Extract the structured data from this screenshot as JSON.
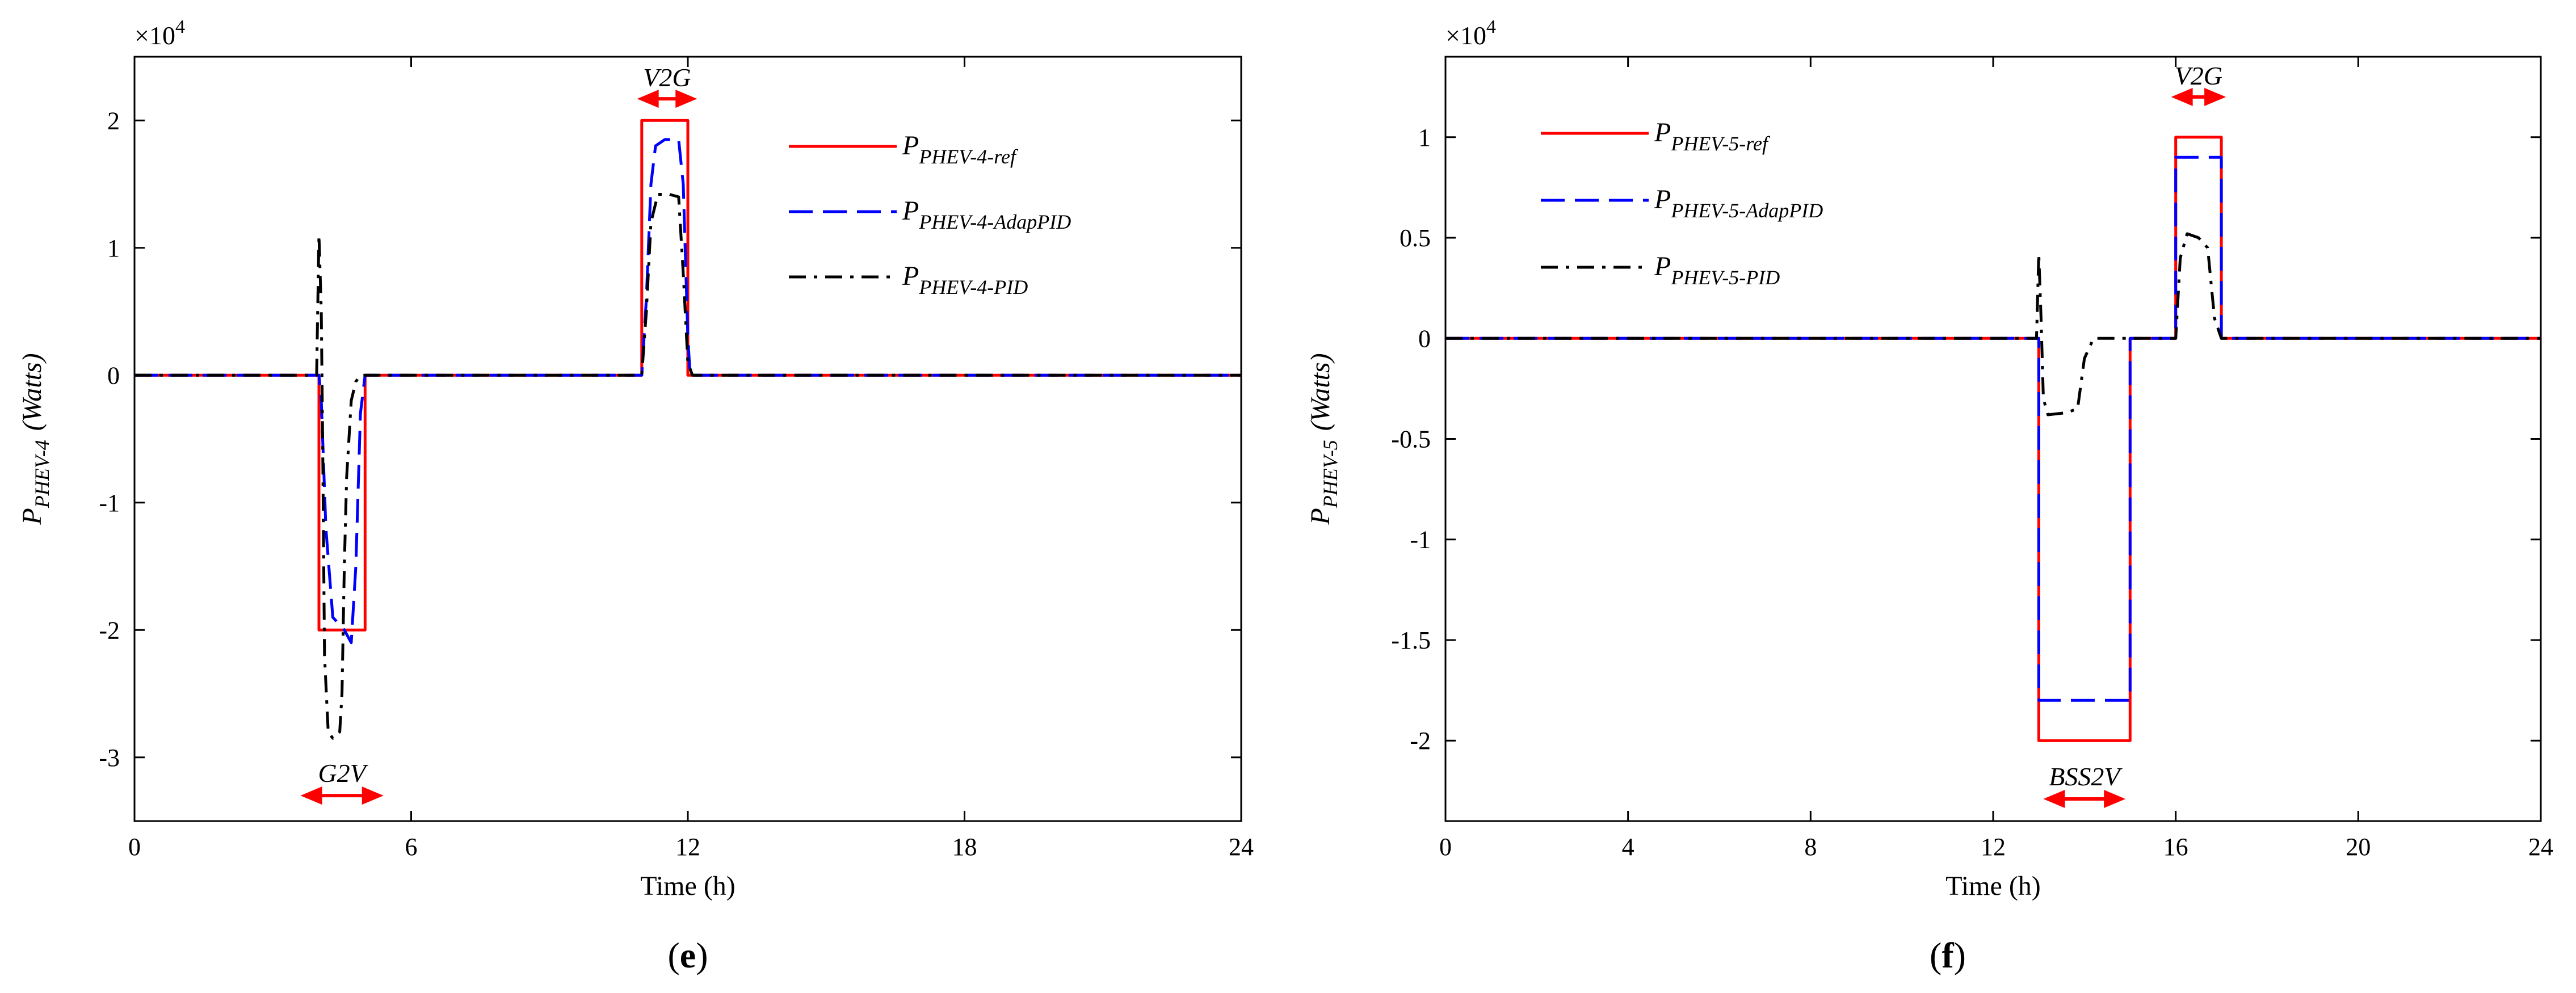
{
  "colors": {
    "ref": "#ff0000",
    "adap": "#0000ff",
    "pid": "#000000",
    "arrow": "#ff0000"
  },
  "chart_data": [
    {
      "id": "e",
      "type": "line",
      "panel_label": {
        "open": "(",
        "letter": "e",
        "close": ")"
      },
      "xlabel": "Time (h)",
      "ylabel": {
        "main": "P",
        "sub": "PHEV-4",
        "unit": "(Watts)"
      },
      "y_multiplier": "×10",
      "y_multiplier_exp": "4",
      "xlim": [
        0,
        24
      ],
      "ylim": [
        -3.5,
        2.5
      ],
      "xticks": [
        0,
        6,
        12,
        18,
        24
      ],
      "yticks": [
        -3,
        -2,
        -1,
        0,
        1,
        2
      ],
      "xtick_labels": [
        "0",
        "6",
        "12",
        "18",
        "24"
      ],
      "ytick_labels": [
        "-3",
        "-2",
        "-1",
        "0",
        "1",
        "2"
      ],
      "legend_position": "top-right",
      "series": [
        {
          "key": "ref",
          "legend": {
            "main": "P",
            "sub": "PHEV-4-ref"
          },
          "style": "solid",
          "points": [
            [
              0,
              0
            ],
            [
              4,
              0
            ],
            [
              4,
              -2
            ],
            [
              5,
              -2
            ],
            [
              5,
              0
            ],
            [
              11,
              0
            ],
            [
              11,
              2
            ],
            [
              12,
              2
            ],
            [
              12,
              0
            ],
            [
              24,
              0
            ]
          ]
        },
        {
          "key": "adap",
          "legend": {
            "main": "P",
            "sub": "PHEV-4-AdapPID"
          },
          "style": "dashed",
          "points": [
            [
              0,
              0
            ],
            [
              4.0,
              0
            ],
            [
              4.05,
              -0.2
            ],
            [
              4.15,
              -1.2
            ],
            [
              4.3,
              -1.9
            ],
            [
              4.55,
              -2.0
            ],
            [
              4.7,
              -2.1
            ],
            [
              4.8,
              -1.5
            ],
            [
              4.9,
              -0.3
            ],
            [
              5.0,
              0
            ],
            [
              11.0,
              0
            ],
            [
              11.1,
              0.6
            ],
            [
              11.2,
              1.5
            ],
            [
              11.3,
              1.8
            ],
            [
              11.5,
              1.85
            ],
            [
              11.8,
              1.85
            ],
            [
              11.9,
              1.5
            ],
            [
              12.0,
              0.3
            ],
            [
              12.05,
              0
            ],
            [
              24,
              0
            ]
          ]
        },
        {
          "key": "pid",
          "legend": {
            "main": "P",
            "sub": "PHEV-4-PID"
          },
          "style": "dashdot",
          "points": [
            [
              0,
              0
            ],
            [
              3.95,
              0
            ],
            [
              4.0,
              1.1
            ],
            [
              4.05,
              0.5
            ],
            [
              4.08,
              -0.5
            ],
            [
              4.12,
              -2.2
            ],
            [
              4.2,
              -2.8
            ],
            [
              4.3,
              -2.85
            ],
            [
              4.45,
              -2.8
            ],
            [
              4.5,
              -2.5
            ],
            [
              4.55,
              -1.5
            ],
            [
              4.6,
              -0.8
            ],
            [
              4.7,
              -0.2
            ],
            [
              4.8,
              -0.05
            ],
            [
              4.9,
              0
            ],
            [
              11.0,
              0
            ],
            [
              11.1,
              0.5
            ],
            [
              11.2,
              1.2
            ],
            [
              11.35,
              1.42
            ],
            [
              11.6,
              1.42
            ],
            [
              11.8,
              1.4
            ],
            [
              11.9,
              0.8
            ],
            [
              12.0,
              0.1
            ],
            [
              12.1,
              0
            ],
            [
              24,
              0
            ]
          ]
        }
      ],
      "annotations": [
        {
          "label": "V2G",
          "x_from": 10.9,
          "x_to": 12.2,
          "y": 2.17
        },
        {
          "label": "G2V",
          "x_from": 3.6,
          "x_to": 5.4,
          "y": -3.3
        }
      ]
    },
    {
      "id": "f",
      "type": "line",
      "panel_label": {
        "open": "(",
        "letter": "f",
        "close": ")"
      },
      "xlabel": "Time (h)",
      "ylabel": {
        "main": "P",
        "sub": "PHEV-5",
        "unit": "(Watts)"
      },
      "y_multiplier": "×10",
      "y_multiplier_exp": "4",
      "xlim": [
        0,
        24
      ],
      "ylim": [
        -2.4,
        1.4
      ],
      "xticks": [
        0,
        4,
        8,
        12,
        16,
        20,
        24
      ],
      "yticks": [
        -2,
        -1.5,
        -1,
        -0.5,
        0,
        0.5,
        1
      ],
      "xtick_labels": [
        "0",
        "4",
        "8",
        "12",
        "16",
        "20",
        "24"
      ],
      "ytick_labels": [
        "-2",
        "-1.5",
        "-1",
        "-0.5",
        "0",
        "0.5",
        "1"
      ],
      "legend_position": "top-left",
      "series": [
        {
          "key": "ref",
          "legend": {
            "main": "P",
            "sub": "PHEV-5-ref"
          },
          "style": "solid",
          "points": [
            [
              0,
              0
            ],
            [
              13,
              0
            ],
            [
              13,
              -2
            ],
            [
              15,
              -2
            ],
            [
              15,
              0
            ],
            [
              16,
              0
            ],
            [
              16,
              1
            ],
            [
              17,
              1
            ],
            [
              17,
              0
            ],
            [
              24,
              0
            ]
          ]
        },
        {
          "key": "adap",
          "legend": {
            "main": "P",
            "sub": "PHEV-5-AdapPID"
          },
          "style": "dashed",
          "points": [
            [
              0,
              0
            ],
            [
              13,
              0
            ],
            [
              13,
              -1.8
            ],
            [
              15,
              -1.8
            ],
            [
              15,
              0
            ],
            [
              16,
              0
            ],
            [
              16,
              0.9
            ],
            [
              17,
              0.9
            ],
            [
              17,
              0
            ],
            [
              24,
              0
            ]
          ]
        },
        {
          "key": "pid",
          "legend": {
            "main": "P",
            "sub": "PHEV-5-PID"
          },
          "style": "dashdot",
          "points": [
            [
              0,
              0
            ],
            [
              12.95,
              0
            ],
            [
              13.0,
              0.42
            ],
            [
              13.05,
              0.1
            ],
            [
              13.1,
              -0.3
            ],
            [
              13.2,
              -0.38
            ],
            [
              13.6,
              -0.37
            ],
            [
              13.85,
              -0.35
            ],
            [
              14.0,
              -0.1
            ],
            [
              14.2,
              0
            ],
            [
              16.0,
              0
            ],
            [
              16.1,
              0.4
            ],
            [
              16.25,
              0.52
            ],
            [
              16.5,
              0.5
            ],
            [
              16.7,
              0.45
            ],
            [
              16.85,
              0.1
            ],
            [
              17.0,
              0
            ],
            [
              24,
              0
            ]
          ]
        }
      ],
      "annotations": [
        {
          "label": "V2G",
          "x_from": 15.9,
          "x_to": 17.1,
          "y": 1.2
        },
        {
          "label": "BSS2V",
          "x_from": 13.1,
          "x_to": 14.9,
          "y": -2.29
        }
      ]
    }
  ]
}
